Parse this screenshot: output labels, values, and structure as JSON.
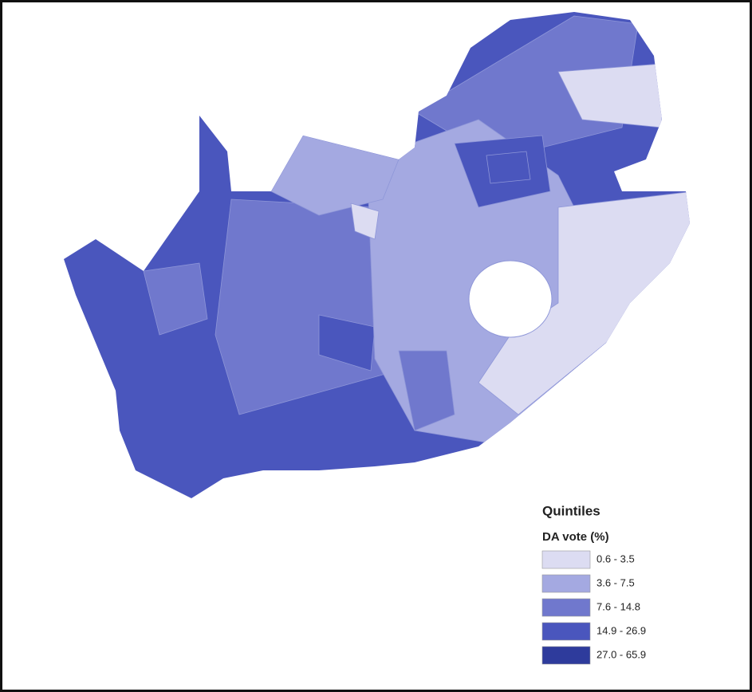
{
  "legend": {
    "title": "Quintiles",
    "subtitle": "DA vote (%)",
    "items": [
      {
        "label": "0.6 - 3.5",
        "color": "#dcdcf2"
      },
      {
        "label": "3.6 - 7.5",
        "color": "#a4a9e1"
      },
      {
        "label": "7.6 - 14.8",
        "color": "#7078cd"
      },
      {
        "label": "14.9 - 26.9",
        "color": "#4a56bd"
      },
      {
        "label": "27.0 - 65.9",
        "color": "#2e3b9c"
      }
    ]
  }
}
